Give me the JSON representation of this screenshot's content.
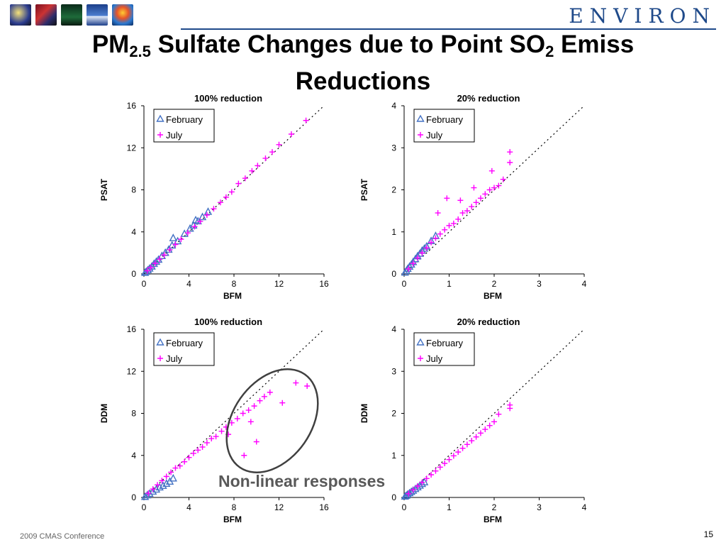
{
  "header": {
    "brand": "ENVIRON",
    "logo_icons": [
      "wheel-logo-icon",
      "dna-logo-icon",
      "forest-logo-icon",
      "ship-logo-icon",
      "balloon-logo-icon"
    ],
    "title_pre": "PM",
    "title_sub1": "2.5",
    "title_mid": " Sulfate Changes due to Point SO",
    "title_sub2": "2",
    "title_post": " Emiss",
    "title_line2": "Reductions"
  },
  "annotation": "Non-linear responses",
  "footer": {
    "conference": "2009 CMAS Conference",
    "page": "15"
  },
  "colors": {
    "february": "#4472c4",
    "july": "#ff00ff",
    "ellipse": "#404040",
    "brand": "#1f4a8a"
  },
  "chart_data": [
    {
      "type": "scatter",
      "title": "100% reduction",
      "xlabel": "BFM",
      "ylabel": "PSAT",
      "xlim": [
        0,
        16
      ],
      "ylim": [
        0,
        16
      ],
      "xticks": [
        0,
        4,
        8,
        12,
        16
      ],
      "yticks": [
        0,
        4,
        8,
        12,
        16
      ],
      "reference_line": "1:1 dotted",
      "legend_position": "top-left",
      "series": [
        {
          "name": "February",
          "marker": "triangle",
          "x": [
            0.1,
            0.2,
            0.35,
            0.5,
            0.7,
            0.9,
            1.1,
            1.3,
            1.6,
            1.9,
            2.2,
            2.5,
            2.6,
            3.0,
            3.6,
            4.1,
            4.4,
            4.6,
            4.8,
            5.2,
            5.7
          ],
          "y": [
            0.1,
            0.2,
            0.35,
            0.5,
            0.7,
            0.95,
            1.15,
            1.35,
            1.7,
            2.0,
            2.3,
            2.7,
            3.4,
            3.1,
            3.8,
            4.3,
            4.6,
            5.1,
            5.0,
            5.4,
            5.9
          ]
        },
        {
          "name": "July",
          "marker": "plus",
          "x": [
            0.3,
            0.6,
            1.0,
            1.4,
            1.8,
            2.3,
            2.8,
            3.3,
            3.9,
            4.5,
            5.0,
            5.6,
            6.2,
            6.8,
            7.3,
            7.8,
            8.4,
            9.0,
            9.6,
            10.1,
            10.8,
            11.4,
            12.0,
            13.1,
            14.4
          ],
          "y": [
            0.3,
            0.6,
            1.0,
            1.4,
            1.8,
            2.3,
            2.8,
            3.3,
            3.9,
            4.5,
            5.0,
            5.6,
            6.2,
            6.8,
            7.3,
            7.8,
            8.6,
            9.1,
            9.8,
            10.3,
            11.0,
            11.6,
            12.3,
            13.3,
            14.6
          ]
        }
      ]
    },
    {
      "type": "scatter",
      "title": "20% reduction",
      "xlabel": "BFM",
      "ylabel": "PSAT",
      "xlim": [
        0,
        4
      ],
      "ylim": [
        0,
        4
      ],
      "xticks": [
        0,
        1,
        2,
        3,
        4
      ],
      "yticks": [
        0,
        1,
        2,
        3,
        4
      ],
      "reference_line": "1:1 dotted",
      "legend_position": "top-left",
      "series": [
        {
          "name": "February",
          "marker": "triangle",
          "x": [
            0.02,
            0.05,
            0.08,
            0.12,
            0.16,
            0.2,
            0.25,
            0.3,
            0.35,
            0.4,
            0.45,
            0.5,
            0.6,
            0.7
          ],
          "y": [
            0.03,
            0.07,
            0.12,
            0.17,
            0.22,
            0.28,
            0.35,
            0.42,
            0.48,
            0.55,
            0.6,
            0.65,
            0.78,
            0.9
          ]
        },
        {
          "name": "July",
          "marker": "plus",
          "x": [
            0.1,
            0.2,
            0.3,
            0.4,
            0.5,
            0.6,
            0.7,
            0.8,
            0.9,
            1.0,
            1.1,
            1.2,
            1.3,
            1.4,
            1.5,
            1.6,
            1.7,
            1.8,
            1.9,
            2.0,
            2.1,
            2.2,
            2.35,
            0.95,
            0.75,
            1.25,
            1.55,
            1.95,
            2.35
          ],
          "y": [
            0.12,
            0.25,
            0.38,
            0.5,
            0.62,
            0.75,
            0.85,
            0.95,
            1.05,
            1.15,
            1.2,
            1.3,
            1.45,
            1.5,
            1.6,
            1.7,
            1.8,
            1.9,
            2.0,
            2.05,
            2.1,
            2.25,
            2.65,
            1.8,
            1.45,
            1.75,
            2.05,
            2.45,
            2.9
          ]
        }
      ]
    },
    {
      "type": "scatter",
      "title": "100% reduction",
      "xlabel": "BFM",
      "ylabel": "DDM",
      "xlim": [
        0,
        16
      ],
      "ylim": [
        0,
        16
      ],
      "xticks": [
        0,
        4,
        8,
        12,
        16
      ],
      "yticks": [
        0,
        4,
        8,
        12,
        16
      ],
      "reference_line": "1:1 dotted",
      "legend_position": "top-left",
      "series": [
        {
          "name": "February",
          "marker": "triangle",
          "x": [
            0.1,
            0.3,
            0.5,
            0.8,
            1.1,
            1.4,
            1.7,
            2.0,
            2.3,
            2.6
          ],
          "y": [
            0.05,
            0.2,
            0.35,
            0.55,
            0.75,
            0.95,
            1.1,
            1.3,
            1.5,
            1.8
          ]
        },
        {
          "name": "July",
          "marker": "plus",
          "x": [
            0.4,
            0.8,
            1.2,
            1.6,
            2.0,
            2.4,
            2.8,
            3.2,
            3.6,
            4.0,
            4.4,
            4.8,
            5.2,
            5.6,
            6.0,
            6.4,
            6.9,
            7.3,
            7.8,
            8.3,
            8.8,
            9.3,
            9.8,
            10.3,
            10.7,
            11.2,
            12.3,
            13.5,
            14.5,
            8.9,
            10.0,
            9.5,
            7.5
          ],
          "y": [
            0.4,
            0.8,
            1.2,
            1.6,
            2.0,
            2.4,
            2.8,
            3.0,
            3.4,
            3.8,
            4.2,
            4.5,
            4.8,
            5.2,
            5.6,
            5.8,
            6.3,
            6.7,
            7.1,
            7.5,
            8.0,
            8.3,
            8.7,
            9.2,
            9.6,
            10.0,
            9.0,
            10.9,
            10.6,
            4.0,
            5.3,
            7.2,
            6.0
          ]
        }
      ]
    },
    {
      "type": "scatter",
      "title": "20% reduction",
      "xlabel": "BFM",
      "ylabel": "DDM",
      "xlim": [
        0,
        4
      ],
      "ylim": [
        0,
        4
      ],
      "xticks": [
        0,
        1,
        2,
        3,
        4
      ],
      "yticks": [
        0,
        1,
        2,
        3,
        4
      ],
      "reference_line": "1:1 dotted",
      "legend_position": "top-left",
      "series": [
        {
          "name": "February",
          "marker": "triangle",
          "x": [
            0.02,
            0.05,
            0.08,
            0.12,
            0.16,
            0.2,
            0.25,
            0.3,
            0.35,
            0.4,
            0.45
          ],
          "y": [
            0.02,
            0.04,
            0.07,
            0.1,
            0.13,
            0.16,
            0.2,
            0.24,
            0.28,
            0.32,
            0.36
          ]
        },
        {
          "name": "July",
          "marker": "plus",
          "x": [
            0.1,
            0.2,
            0.3,
            0.4,
            0.5,
            0.6,
            0.7,
            0.8,
            0.9,
            1.0,
            1.1,
            1.2,
            1.3,
            1.4,
            1.5,
            1.6,
            1.7,
            1.8,
            1.9,
            2.0,
            2.1,
            2.35,
            2.35
          ],
          "y": [
            0.09,
            0.18,
            0.27,
            0.36,
            0.45,
            0.54,
            0.63,
            0.72,
            0.81,
            0.9,
            0.99,
            1.08,
            1.17,
            1.26,
            1.35,
            1.44,
            1.53,
            1.62,
            1.71,
            1.8,
            1.98,
            2.12,
            2.2
          ]
        }
      ]
    }
  ]
}
